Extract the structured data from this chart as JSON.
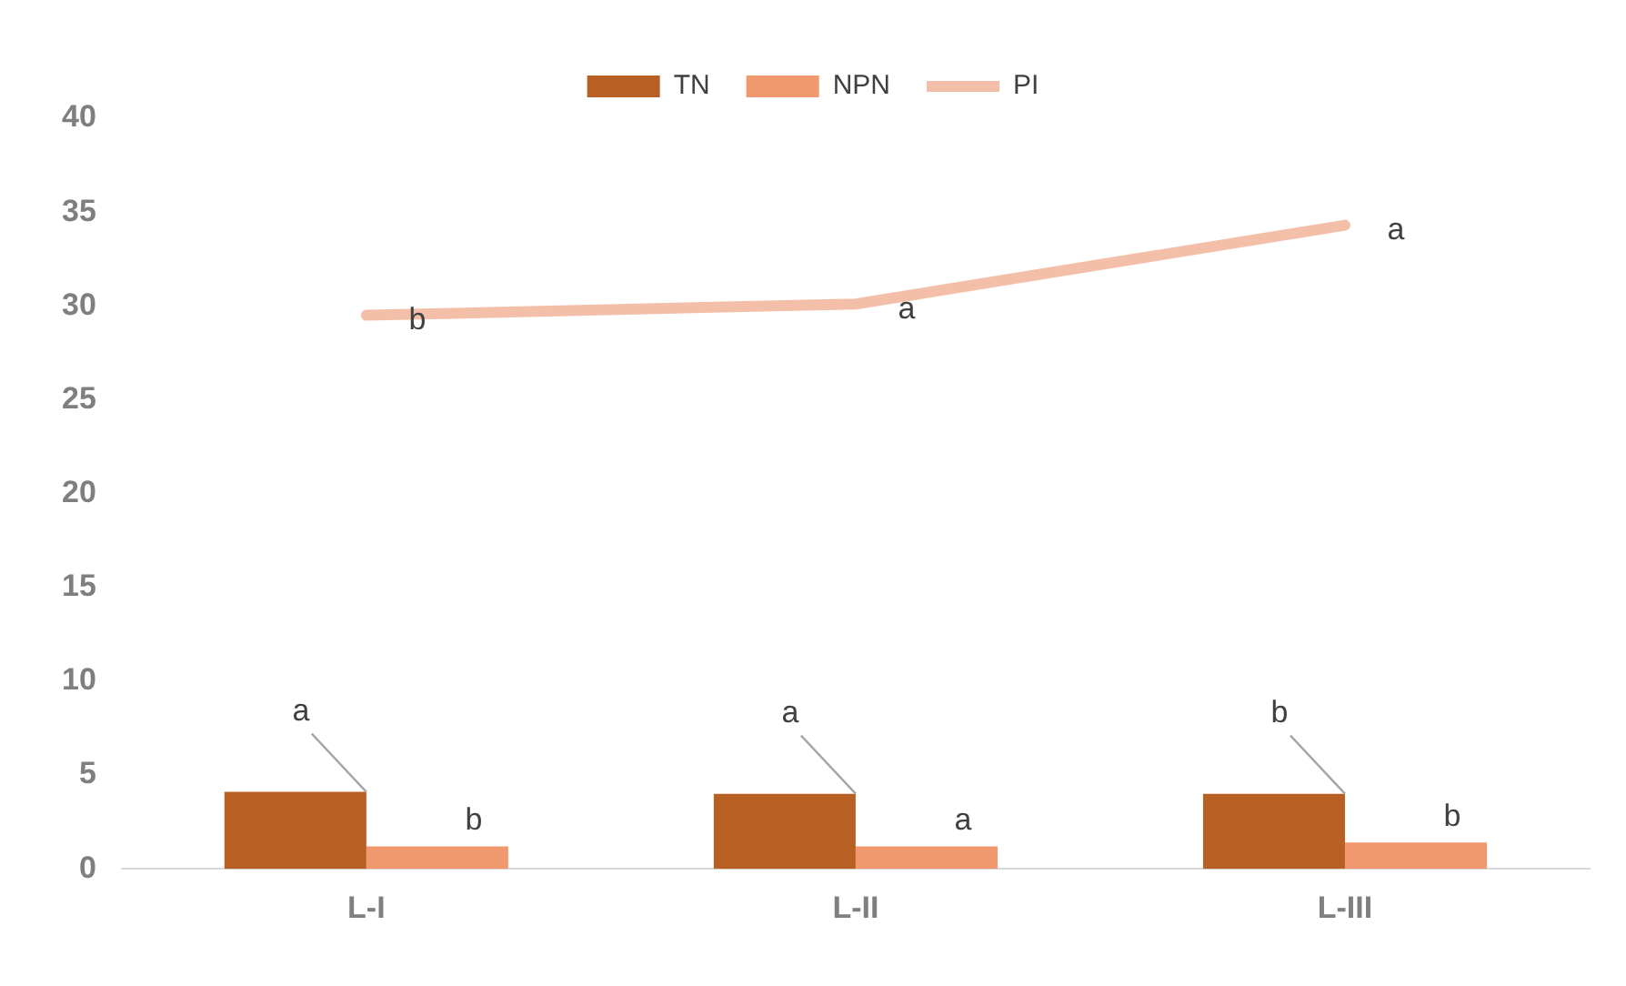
{
  "chart_data": {
    "type": "bar",
    "categories": [
      "L-I",
      "L-II",
      "L-III"
    ],
    "series": [
      {
        "name": "TN",
        "color": "#b85f24",
        "values": [
          4.1,
          4.0,
          4.0
        ]
      },
      {
        "name": "NPN",
        "color": "#f0986e",
        "values": [
          1.2,
          1.2,
          1.4
        ]
      },
      {
        "name": "PI",
        "type": "line",
        "color": "#f4bfa9",
        "values": [
          29.5,
          30.1,
          34.3
        ]
      }
    ],
    "ylim": [
      0,
      40
    ],
    "yticks": [
      0,
      5,
      10,
      15,
      20,
      25,
      30,
      35,
      40
    ],
    "grid": false,
    "legend": "top",
    "marker": "none",
    "annotations": [
      {
        "text": "a",
        "x": "L-I",
        "y": 4.1
      },
      {
        "text": "a",
        "x": "L-II",
        "y": 4.0
      },
      {
        "text": "b",
        "x": "L-III",
        "y": 4.0
      },
      "b",
      "a",
      "b",
      {
        "text": "b",
        "x": "L-I",
        "y": 29.5
      },
      {
        "text": "a",
        "x": "L-II",
        "y": 30.1
      },
      {
        "text": "a",
        "x": "L-III",
        "y": 34.3
      }
    ]
  }
}
